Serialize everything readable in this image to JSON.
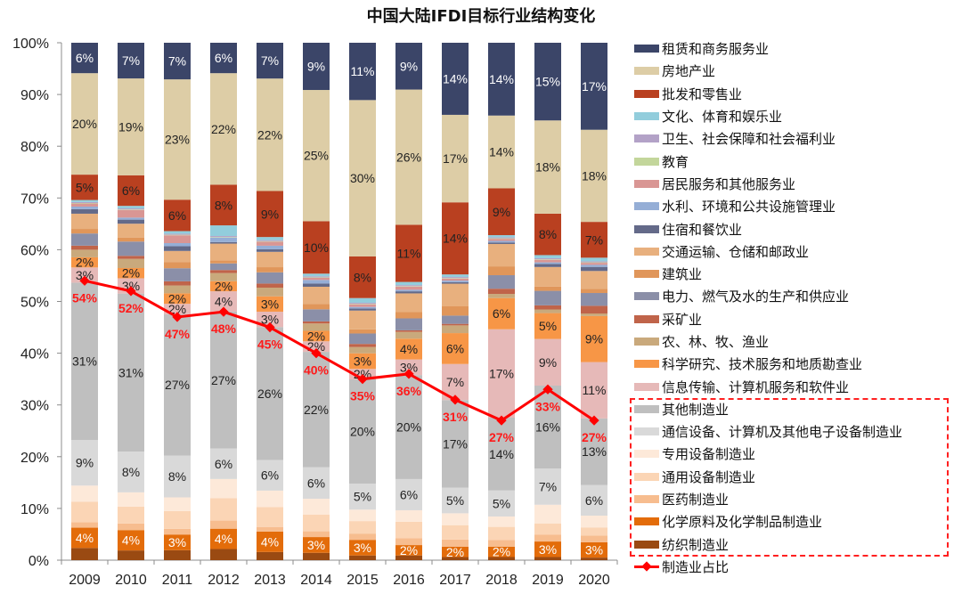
{
  "chart_data": {
    "type": "bar",
    "stacked": true,
    "percent": true,
    "title": "中国大陆IFDI目标行业结构变化",
    "xlabel": "",
    "ylabel": "",
    "ylim": [
      0,
      100
    ],
    "yticks": [
      "0%",
      "10%",
      "20%",
      "30%",
      "40%",
      "50%",
      "60%",
      "70%",
      "80%",
      "90%",
      "100%"
    ],
    "grid": false,
    "legend_position": "right",
    "categories": [
      "2009",
      "2010",
      "2011",
      "2012",
      "2013",
      "2014",
      "2015",
      "2016",
      "2017",
      "2018",
      "2019",
      "2020"
    ],
    "series": [
      {
        "name": "纺织制造业",
        "color": "#9a4a12",
        "text_color": "#ffffff",
        "values": [
          2.4,
          1.9,
          1.9,
          2.2,
          1.6,
          1.4,
          0.9,
          0.9,
          0.6,
          0.6,
          0.6,
          0.5
        ],
        "labels": [
          null,
          null,
          null,
          null,
          null,
          null,
          null,
          null,
          null,
          null,
          null,
          null
        ]
      },
      {
        "name": "化学原料及化学制品制造业",
        "color": "#e36c0a",
        "text_color": "#ffffff",
        "values": [
          4,
          4,
          3,
          4,
          4,
          3,
          3,
          2,
          2,
          2,
          3,
          3
        ],
        "labels": [
          "4%",
          "4%",
          "3%",
          "4%",
          "4%",
          "3%",
          "3%",
          "2%",
          "2%",
          "2%",
          "3%",
          "3%"
        ]
      },
      {
        "name": "医药制造业",
        "color": "#f7bd8f",
        "text_color": "#222222",
        "values": [
          1.1,
          1.3,
          1.1,
          1.6,
          0.9,
          1.1,
          1.2,
          1.3,
          1.4,
          1.3,
          1.3,
          1.3
        ],
        "labels": [
          null,
          null,
          null,
          null,
          null,
          null,
          null,
          null,
          null,
          null,
          null,
          null
        ]
      },
      {
        "name": "通用设备制造业",
        "color": "#fbd5b5",
        "text_color": "#222222",
        "values": [
          4.0,
          3.3,
          3.4,
          4.4,
          3.9,
          3.2,
          2.4,
          3.2,
          2.8,
          2.5,
          2.2,
          1.6
        ],
        "labels": [
          null,
          null,
          null,
          null,
          null,
          null,
          null,
          null,
          null,
          null,
          null,
          null
        ]
      },
      {
        "name": "专用设备制造业",
        "color": "#fde9d9",
        "text_color": "#222222",
        "values": [
          3.2,
          2.8,
          2.6,
          3.8,
          3.2,
          3.0,
          2.2,
          2.2,
          2.3,
          2.0,
          3.6,
          2.3
        ],
        "labels": [
          null,
          null,
          null,
          null,
          null,
          null,
          null,
          null,
          null,
          null,
          null,
          null
        ]
      },
      {
        "name": "通信设备、计算机及其他电子设备制造业",
        "color": "#d9d9d9",
        "text_color": "#222222",
        "values": [
          9,
          8,
          8,
          6,
          6,
          6,
          5,
          6,
          5,
          5,
          7,
          6
        ],
        "labels": [
          "9%",
          "8%",
          "8%",
          "6%",
          "6%",
          "6%",
          "5%",
          "6%",
          "5%",
          "5%",
          "7%",
          "6%"
        ]
      },
      {
        "name": "其他制造业",
        "color": "#bfbfbf",
        "text_color": "#222222",
        "values": [
          31,
          31,
          27,
          27,
          26,
          22,
          20,
          20,
          17,
          14,
          16,
          13
        ],
        "labels": [
          "31%",
          "31%",
          "27%",
          "27%",
          "26%",
          "22%",
          "20%",
          "20%",
          "17%",
          "14%",
          "16%",
          "13%"
        ]
      },
      {
        "name": "信息传输、计算机服务和软件业",
        "color": "#e6b9b8",
        "text_color": "#222222",
        "values": [
          3,
          3,
          2,
          4,
          3,
          2,
          2,
          3,
          7,
          17,
          9,
          11
        ],
        "labels": [
          "3%",
          "3%",
          "2%",
          "4%",
          "3%",
          "2%",
          "2%",
          "3%",
          "7%",
          "17%",
          "9%",
          "11%"
        ]
      },
      {
        "name": "科学研究、技术服务和地质勘查业",
        "color": "#f79646",
        "text_color": "#222222",
        "values": [
          2,
          2,
          2,
          2,
          3,
          2,
          3,
          4,
          6,
          6,
          5,
          9
        ],
        "labels": [
          "2%",
          "2%",
          "2%",
          "2%",
          "3%",
          "2%",
          "3%",
          "4%",
          "6%",
          "6%",
          "5%",
          "9%"
        ]
      },
      {
        "name": "农、林、牧、渔业",
        "color": "#c9a97c",
        "text_color": "#222222",
        "values": [
          1.5,
          1.8,
          1.5,
          1.6,
          1.7,
          1.4,
          1.2,
          1.3,
          1.5,
          0.8,
          0.7,
          0.5
        ],
        "labels": [
          null,
          null,
          null,
          null,
          null,
          null,
          null,
          null,
          null,
          null,
          null,
          null
        ]
      },
      {
        "name": "采矿业",
        "color": "#c0644a",
        "text_color": "#222222",
        "values": [
          0.8,
          0.6,
          0.8,
          0.6,
          0.8,
          0.4,
          0.6,
          0.3,
          0.3,
          1.0,
          0.8,
          1.5
        ],
        "labels": [
          null,
          null,
          null,
          null,
          null,
          null,
          null,
          null,
          null,
          null,
          null,
          null
        ]
      },
      {
        "name": "电力、燃气及水的生产和供应业",
        "color": "#8b8fa8",
        "text_color": "#222222",
        "values": [
          2.4,
          2.8,
          2.5,
          1.3,
          2.2,
          2.3,
          2.0,
          2.3,
          1.6,
          2.6,
          2.8,
          2.5
        ],
        "labels": [
          null,
          null,
          null,
          null,
          null,
          null,
          null,
          null,
          null,
          null,
          null,
          null
        ]
      },
      {
        "name": "建筑业",
        "color": "#e0965a",
        "text_color": "#222222",
        "values": [
          0.9,
          0.8,
          1.2,
          0.6,
          1.0,
          1.0,
          0.8,
          1.2,
          1.8,
          1.7,
          0.8,
          0.8
        ],
        "labels": [
          null,
          null,
          null,
          null,
          null,
          null,
          null,
          null,
          null,
          null,
          null,
          null
        ]
      },
      {
        "name": "交通运输、仓储和邮政业",
        "color": "#e8b07e",
        "text_color": "#222222",
        "values": [
          3.0,
          2.7,
          2.1,
          3.3,
          3.0,
          3.3,
          3.6,
          3.6,
          4.4,
          4.3,
          3.8,
          3.5
        ],
        "labels": [
          null,
          null,
          null,
          null,
          null,
          null,
          null,
          null,
          null,
          null,
          null,
          null
        ]
      },
      {
        "name": "住宿和餐饮业",
        "color": "#646a89",
        "text_color": "#222222",
        "values": [
          0.9,
          0.8,
          0.9,
          0.3,
          0.5,
          0.6,
          0.4,
          0.4,
          0.3,
          0.3,
          0.6,
          0.8
        ],
        "labels": [
          null,
          null,
          null,
          null,
          null,
          null,
          null,
          null,
          null,
          null,
          null,
          null
        ]
      },
      {
        "name": "水利、环境和公共设施管理业",
        "color": "#95aed6",
        "text_color": "#222222",
        "values": [
          0.5,
          0.4,
          0.6,
          0.9,
          0.7,
          0.7,
          0.3,
          0.3,
          0.3,
          0.3,
          0.3,
          0.4
        ],
        "labels": [
          null,
          null,
          null,
          null,
          null,
          null,
          null,
          null,
          null,
          null,
          null,
          null
        ]
      },
      {
        "name": "居民服务和其他服务业",
        "color": "#d99694",
        "text_color": "#222222",
        "values": [
          0.6,
          1.5,
          1.5,
          0.0,
          0.8,
          0.4,
          0.5,
          0.6,
          0.4,
          0.4,
          0.5,
          0.4
        ],
        "labels": [
          null,
          null,
          null,
          null,
          null,
          null,
          null,
          null,
          null,
          null,
          null,
          null
        ]
      },
      {
        "name": "教育",
        "color": "#c3d69b",
        "text_color": "#222222",
        "values": [
          0.1,
          0.1,
          0.1,
          0.1,
          0.1,
          0.1,
          0.1,
          0.1,
          0.1,
          0.1,
          0.1,
          0.1
        ],
        "labels": [
          null,
          null,
          null,
          null,
          null,
          null,
          null,
          null,
          null,
          null,
          null,
          null
        ]
      },
      {
        "name": "卫生、社会保障和社会福利业",
        "color": "#b3a2c7",
        "text_color": "#222222",
        "values": [
          0.2,
          0.2,
          0.2,
          0.2,
          0.2,
          0.2,
          0.2,
          0.2,
          0.2,
          0.2,
          0.2,
          0.2
        ],
        "labels": [
          null,
          null,
          null,
          null,
          null,
          null,
          null,
          null,
          null,
          null,
          null,
          null
        ]
      },
      {
        "name": "文化、体育和娱乐业",
        "color": "#92cddc",
        "text_color": "#222222",
        "values": [
          0.4,
          0.5,
          0.5,
          2.1,
          0.6,
          0.5,
          0.9,
          0.6,
          0.5,
          0.4,
          0.6,
          0.7
        ],
        "labels": [
          null,
          null,
          null,
          null,
          null,
          null,
          null,
          null,
          null,
          null,
          null,
          null
        ]
      },
      {
        "name": "批发和零售业",
        "color": "#b94020",
        "text_color": "#222222",
        "values": [
          5,
          6,
          6,
          8,
          9,
          10,
          8,
          11,
          14,
          9,
          8,
          7
        ],
        "labels": [
          "5%",
          "6%",
          "6%",
          "8%",
          "9%",
          "10%",
          "8%",
          "11%",
          "14%",
          "9%",
          "8%",
          "7%"
        ]
      },
      {
        "name": "房地产业",
        "color": "#ddcda6",
        "text_color": "#222222",
        "values": [
          20,
          19,
          23,
          22,
          22,
          25,
          30,
          26,
          17,
          14,
          18,
          18
        ],
        "labels": [
          "20%",
          "19%",
          "23%",
          "22%",
          "22%",
          "25%",
          "30%",
          "26%",
          "17%",
          "14%",
          "18%",
          "18%"
        ]
      },
      {
        "name": "租赁和商务服务业",
        "color": "#3b4568",
        "text_color": "#ffffff",
        "values": [
          6,
          7,
          7,
          6,
          7,
          9,
          11,
          9,
          14,
          14,
          15,
          17
        ],
        "labels": [
          "6%",
          "7%",
          "7%",
          "6%",
          "7%",
          "9%",
          "11%",
          "9%",
          "14%",
          "14%",
          "15%",
          "17%"
        ]
      }
    ],
    "line_series": {
      "name": "制造业占比",
      "color": "#ff0000",
      "values": [
        54,
        52,
        47,
        48,
        45,
        40,
        35,
        36,
        31,
        27,
        33,
        27
      ],
      "labels": [
        "54%",
        "52%",
        "47%",
        "48%",
        "45%",
        "40%",
        "35%",
        "36%",
        "31%",
        "27%",
        "33%",
        "27%"
      ]
    },
    "highlight_box": "manufacturing legend group (dashed red)"
  },
  "legend": {
    "items": [
      {
        "label": "租赁和商务服务业",
        "color": "#3b4568"
      },
      {
        "label": "房地产业",
        "color": "#ddcda6"
      },
      {
        "label": "批发和零售业",
        "color": "#b94020"
      },
      {
        "label": "文化、体育和娱乐业",
        "color": "#92cddc"
      },
      {
        "label": "卫生、社会保障和社会福利业",
        "color": "#b3a2c7"
      },
      {
        "label": "教育",
        "color": "#c3d69b"
      },
      {
        "label": "居民服务和其他服务业",
        "color": "#d99694"
      },
      {
        "label": "水利、环境和公共设施管理业",
        "color": "#95aed6"
      },
      {
        "label": "住宿和餐饮业",
        "color": "#646a89"
      },
      {
        "label": "交通运输、仓储和邮政业",
        "color": "#e8b07e"
      },
      {
        "label": "建筑业",
        "color": "#e0965a"
      },
      {
        "label": "电力、燃气及水的生产和供应业",
        "color": "#8b8fa8"
      },
      {
        "label": "采矿业",
        "color": "#c0644a"
      },
      {
        "label": "农、林、牧、渔业",
        "color": "#c9a97c"
      },
      {
        "label": "科学研究、技术服务和地质勘查业",
        "color": "#f79646"
      },
      {
        "label": "信息传输、计算机服务和软件业",
        "color": "#e6b9b8"
      },
      {
        "label": "其他制造业",
        "color": "#bfbfbf"
      },
      {
        "label": "通信设备、计算机及其他电子设备制造业",
        "color": "#d9d9d9"
      },
      {
        "label": "专用设备制造业",
        "color": "#fde9d9"
      },
      {
        "label": "通用设备制造业",
        "color": "#fbd5b5"
      },
      {
        "label": "医药制造业",
        "color": "#f7bd8f"
      },
      {
        "label": "化学原料及化学制品制造业",
        "color": "#e36c0a"
      },
      {
        "label": "纺织制造业",
        "color": "#9a4a12"
      }
    ],
    "line_item": {
      "label": "制造业占比",
      "color": "#ff0000"
    }
  }
}
